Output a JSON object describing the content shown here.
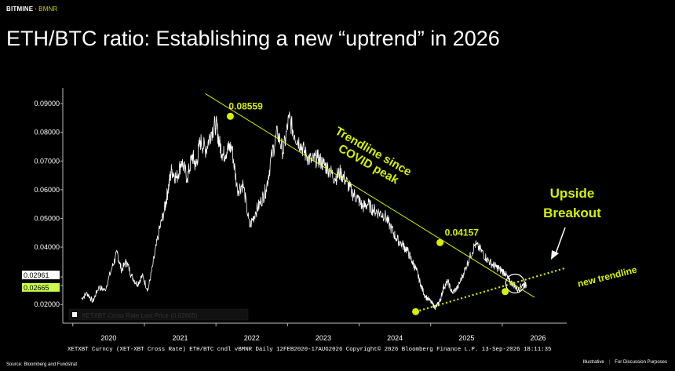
{
  "header": {
    "brand_left": "BITMINE",
    "brand_sep": "·",
    "brand_right": "BMNR",
    "title": "ETH/BTC ratio: Establishing a new “uptrend” in 2026"
  },
  "footer": {
    "source": "Source: Bloomberg and Fundstrat",
    "illustrative": "Illustrative",
    "separator": "|",
    "disclaimer": "For Discussion Purposes"
  },
  "colors": {
    "accent": "#d6f000",
    "price_line": "#ffffff",
    "background": "#000000",
    "price_tag_green": "#c8ff4a"
  },
  "chart_data": {
    "type": "line",
    "bloomberg_caption": "XETXBT Curncy (XET-XBT Cross Rate) ETH/BTC cndl vBMNR Daily 12FEB2020-17AUG2026    Copyright© 2026 Bloomberg Finance L.P.      13-Sep-2026 18:11:35",
    "legend_entry": "XETXBT Cross Rate  Last Price  (0.02665)",
    "x_ticks": [
      "2020",
      "2021",
      "2022",
      "2023",
      "2024",
      "2025",
      "2026"
    ],
    "y_ticks": [
      "0.09000",
      "0.08000",
      "0.07000",
      "0.06000",
      "0.05000",
      "0.04000",
      "0.02961",
      "0.02665",
      "0.02000"
    ],
    "y_tick_values": [
      0.09,
      0.08,
      0.07,
      0.06,
      0.05,
      0.04,
      0.02961,
      0.02665,
      0.02
    ],
    "ylim": [
      0.0135,
      0.0955
    ],
    "xlim": [
      2019.86,
      2026.9
    ],
    "grid": false,
    "series": [
      {
        "values_x": [
          2020.12,
          2020.2,
          2020.28,
          2020.36,
          2020.45,
          2020.55,
          2020.62,
          2020.68,
          2020.75,
          2020.82,
          2020.9,
          2020.97,
          2021.05,
          2021.12,
          2021.2,
          2021.28,
          2021.33,
          2021.38,
          2021.45,
          2021.52,
          2021.6,
          2021.67,
          2021.72,
          2021.78,
          2021.86,
          2021.93,
          2022.0,
          2022.05,
          2022.1,
          2022.16,
          2022.22,
          2022.3,
          2022.38,
          2022.47,
          2022.55,
          2022.63,
          2022.7,
          2022.78,
          2022.86,
          2022.94,
          2023.02,
          2023.1,
          2023.18,
          2023.26,
          2023.34,
          2023.42,
          2023.5,
          2023.58,
          2023.66,
          2023.74,
          2023.82,
          2023.9,
          2023.98,
          2024.05,
          2024.12,
          2024.2,
          2024.28,
          2024.36,
          2024.44,
          2024.52,
          2024.6,
          2024.67,
          2024.74,
          2024.8,
          2024.86,
          2024.92,
          2025.0,
          2025.06,
          2025.1,
          2025.14,
          2025.18,
          2025.24,
          2025.3,
          2025.38,
          2025.46,
          2025.54,
          2025.62,
          2025.7,
          2025.78,
          2025.86,
          2025.92,
          2025.98,
          2026.04,
          2026.1,
          2026.16,
          2026.22,
          2026.28,
          2026.34
        ],
        "values_y": [
          0.022,
          0.024,
          0.021,
          0.026,
          0.025,
          0.033,
          0.038,
          0.032,
          0.035,
          0.03,
          0.027,
          0.03,
          0.025,
          0.034,
          0.045,
          0.053,
          0.06,
          0.067,
          0.064,
          0.07,
          0.064,
          0.072,
          0.068,
          0.077,
          0.074,
          0.08,
          0.083,
          0.076,
          0.072,
          0.074,
          0.075,
          0.06,
          0.062,
          0.047,
          0.052,
          0.056,
          0.06,
          0.072,
          0.08,
          0.073,
          0.085,
          0.079,
          0.076,
          0.072,
          0.07,
          0.071,
          0.069,
          0.067,
          0.064,
          0.066,
          0.063,
          0.059,
          0.057,
          0.054,
          0.055,
          0.053,
          0.052,
          0.051,
          0.047,
          0.043,
          0.041,
          0.039,
          0.035,
          0.032,
          0.027,
          0.023,
          0.021,
          0.019,
          0.02,
          0.022,
          0.026,
          0.028,
          0.024,
          0.026,
          0.031,
          0.036,
          0.041,
          0.039,
          0.036,
          0.034,
          0.033,
          0.032,
          0.031,
          0.028,
          0.027,
          0.025,
          0.027,
          0.02665
        ]
      }
    ],
    "annotations": [
      {
        "text": "0.08559",
        "x": 2022.2,
        "y": 0.08559
      },
      {
        "text": "0.04157",
        "x": 2025.13,
        "y": 0.04157
      },
      {
        "text": "Trendline since",
        "kind": "note"
      },
      {
        "text": "COVID peak",
        "kind": "note"
      },
      {
        "text": "Upside",
        "kind": "callout"
      },
      {
        "text": "Breakout",
        "kind": "callout"
      },
      {
        "text": "new trendline",
        "kind": "note"
      }
    ],
    "trendline_down": {
      "x": [
        2021.85,
        2026.45
      ],
      "y": [
        0.0935,
        0.0225
      ]
    },
    "trendline_up": {
      "x": [
        2024.79,
        2026.88
      ],
      "y": [
        0.0175,
        0.0327
      ]
    },
    "pivots": [
      {
        "x": 2022.2,
        "y": 0.08559
      },
      {
        "x": 2025.13,
        "y": 0.04157
      },
      {
        "x": 2024.79,
        "y": 0.0175
      },
      {
        "x": 2026.04,
        "y": 0.0245
      }
    ]
  }
}
